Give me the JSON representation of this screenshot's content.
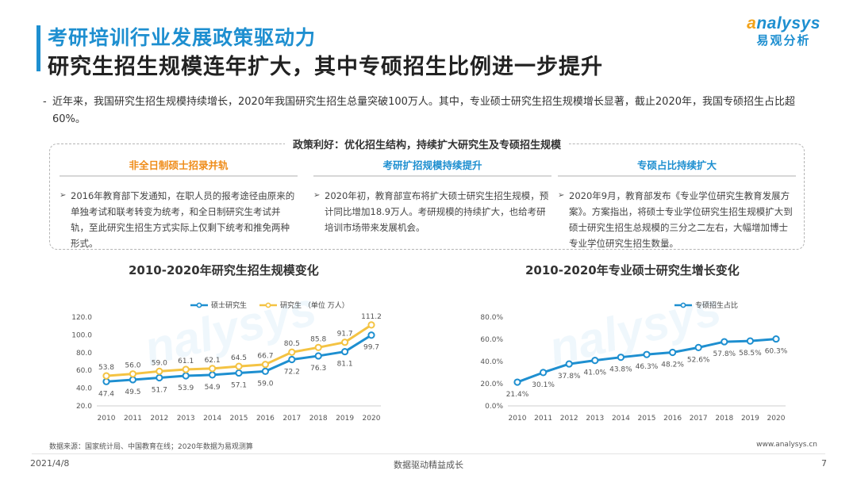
{
  "header": {
    "title": "考研培训行业发展政策驱动力",
    "subtitle": "研究生招生规模连年扩大，其中专硕招生比例进一步提升"
  },
  "logo": {
    "text_prefix": "a",
    "text_rest": "nalysys",
    "cn": "易观分析"
  },
  "intro": {
    "dash": "-",
    "text": "近年来，我国研究生招生规模持续增长，2020年我国研究生招生总量突破100万人。其中，专业硕士研究生招生规模增长显著，截止2020年，我国专硕招生占比超60%。"
  },
  "policy": {
    "title": "政策利好：优化招生结构，持续扩大研究生及专硕招生规模",
    "columns": [
      {
        "heading": "非全日制硕士招录并轨",
        "bullet": "➢",
        "text": "2016年教育部下发通知，在职人员的报考途径由原来的单独考试和联考转变为统考，和全日制研究生考试并轨，至此研究生招生方式实际上仅剩下统考和推免两种形式。"
      },
      {
        "heading": "考研扩招规模持续提升",
        "bullet": "➢",
        "text": "2020年初，教育部宣布将扩大硕士研究生招生规模，预计同比增加18.9万人。考研规模的持续扩大，也给考研培训市场带来发展机会。"
      },
      {
        "heading": "专硕占比持续扩大",
        "bullet": "➢",
        "text": "2020年9月，教育部发布《专业学位研究生教育发展方案》。方案指出，将硕士专业学位研究生招生规模扩大到硕士研究生招生总规模的三分之二左右，大幅增加博士专业学位研究生招生数量。"
      }
    ]
  },
  "colors": {
    "accent_blue": "#1e8fd0",
    "accent_yellow": "#f4c343",
    "accent_orange": "#ef8c19"
  },
  "chart_data": [
    {
      "type": "line",
      "title": "2010-2020年研究生招生规模变化",
      "categories": [
        "2010",
        "2011",
        "2012",
        "2013",
        "2014",
        "2015",
        "2016",
        "2017",
        "2018",
        "2019",
        "2020"
      ],
      "yticks": [
        "20.0",
        "40.0",
        "60.0",
        "80.0",
        "100.0",
        "120.0"
      ],
      "ylim": [
        20,
        120
      ],
      "grid": false,
      "legend": "top",
      "series": [
        {
          "name": "硕士研究生",
          "color": "#1e8fd0",
          "values": [
            47.4,
            49.5,
            51.7,
            53.9,
            54.9,
            57.1,
            59.0,
            72.2,
            76.3,
            81.1,
            99.7
          ],
          "labels": [
            "47.4",
            "49.5",
            "51.7",
            "53.9",
            "54.9",
            "57.1",
            "59.0",
            "72.2",
            "76.3",
            "81.1",
            "99.7"
          ]
        },
        {
          "name": "研究生 （单位 万人）",
          "color": "#f4c343",
          "values": [
            53.8,
            56.0,
            59.0,
            61.1,
            62.1,
            64.5,
            66.7,
            80.5,
            85.8,
            91.7,
            111.2
          ],
          "labels": [
            "53.8",
            "56.0",
            "59.0",
            "61.1",
            "62.1",
            "64.5",
            "66.7",
            "80.5",
            "85.8",
            "91.7",
            "111.2"
          ]
        }
      ]
    },
    {
      "type": "line",
      "title": "2010-2020年专业硕士研究生增长变化",
      "categories": [
        "2010",
        "2011",
        "2012",
        "2013",
        "2014",
        "2015",
        "2016",
        "2017",
        "2018",
        "2019",
        "2020"
      ],
      "yticks": [
        "0.0%",
        "20.0%",
        "40.0%",
        "60.0%",
        "80.0%"
      ],
      "ylim": [
        0,
        80
      ],
      "grid": false,
      "legend": "top",
      "series": [
        {
          "name": "专硕招生占比",
          "color": "#1e8fd0",
          "values": [
            21.4,
            30.1,
            37.8,
            41.0,
            43.8,
            46.3,
            48.2,
            52.6,
            57.8,
            58.5,
            60.3
          ],
          "labels": [
            "21.4%",
            "30.1%",
            "37.8%",
            "41.0%",
            "43.8%",
            "46.3%",
            "48.2%",
            "52.6%",
            "57.8%",
            "58.5%",
            "60.3%"
          ]
        }
      ]
    }
  ],
  "footer": {
    "source": "数据来源：国家统计局、中国教育在线；2020年数据为易观测算",
    "site": "www.analysys.cn",
    "date": "2021/4/8",
    "slogan": "数据驱动精益成长",
    "page": "7"
  }
}
